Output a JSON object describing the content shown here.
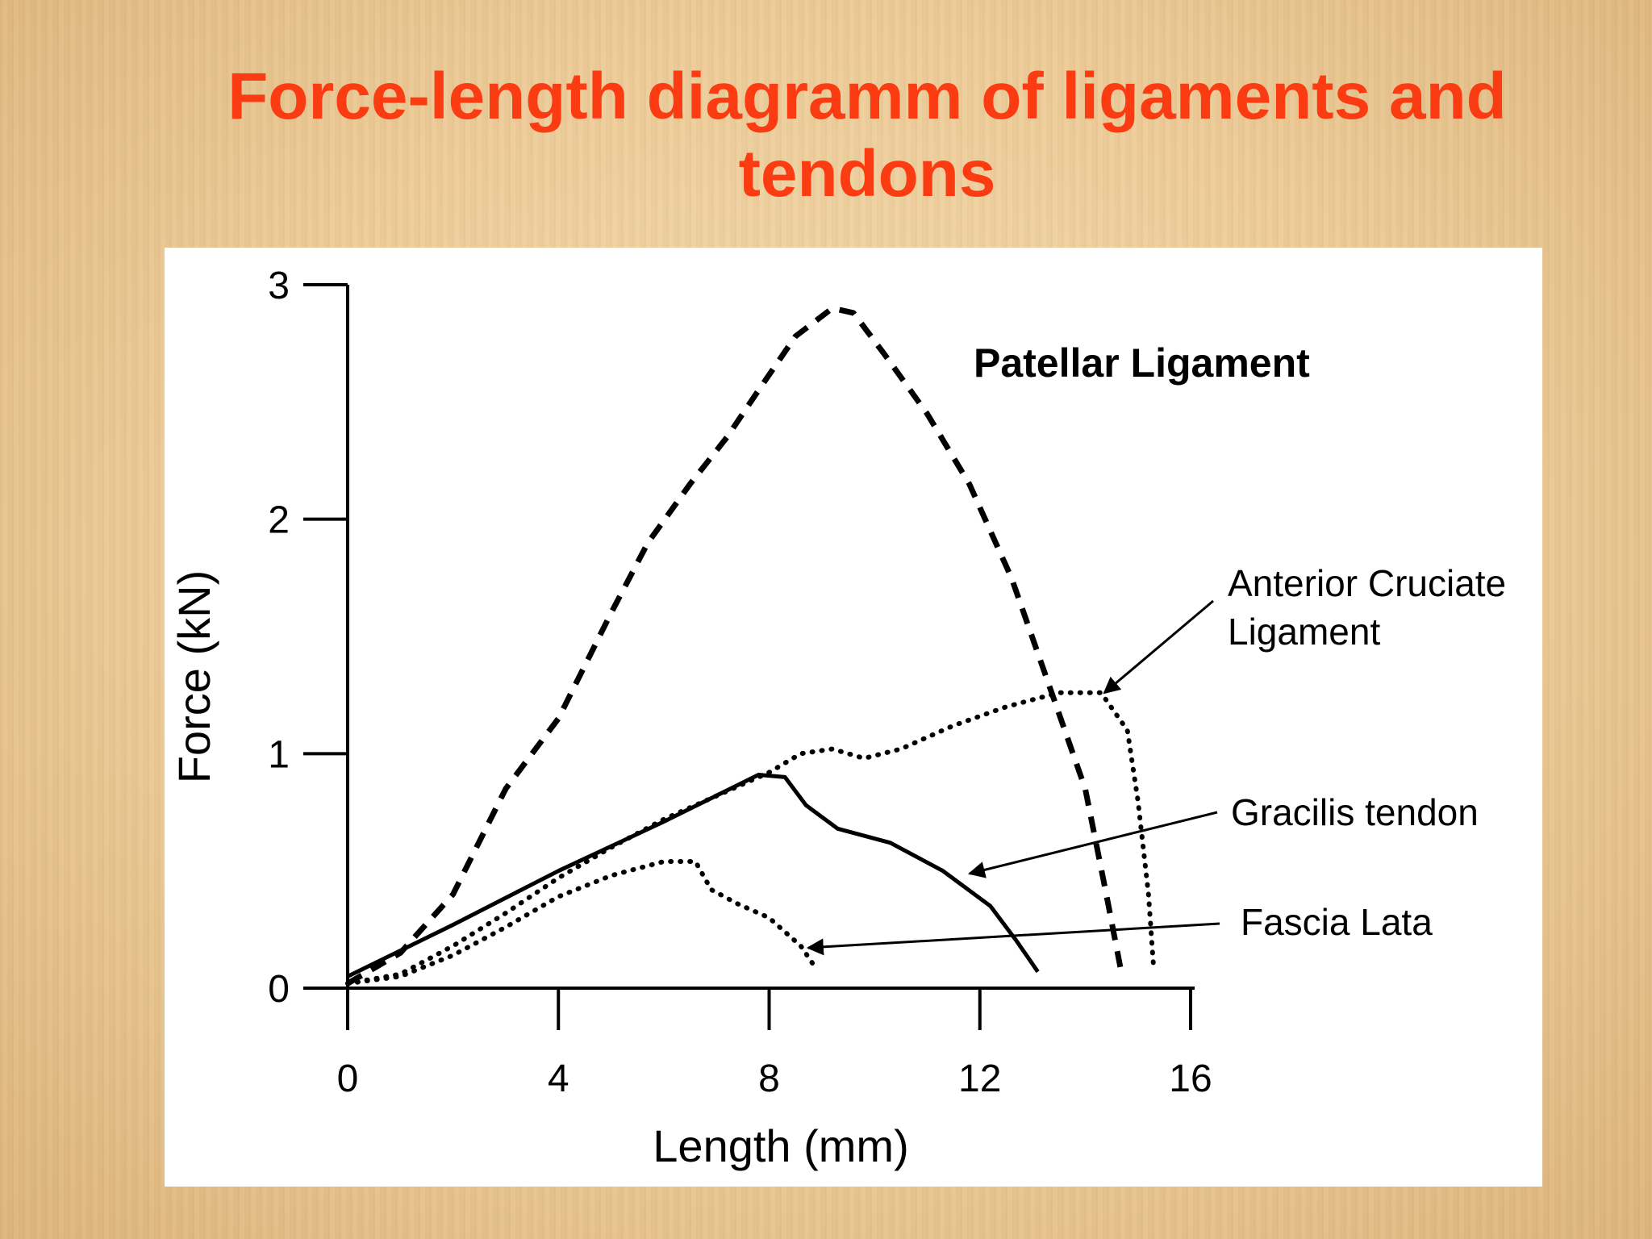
{
  "slide": {
    "title": "Force-length diagramm of ligaments and tendons"
  },
  "chart_data": {
    "type": "line",
    "xlabel": "Length (mm)",
    "ylabel": "Force (kN)",
    "xlim": [
      0,
      16
    ],
    "ylim": [
      0,
      3
    ],
    "xticks": [
      "0",
      "4",
      "8",
      "12",
      "16"
    ],
    "yticks": [
      "0",
      "1",
      "2",
      "3"
    ],
    "grid": false,
    "series": [
      {
        "name": "Patellar Ligament",
        "style": "dashed",
        "x": [
          0,
          1,
          2,
          3,
          4,
          5,
          5.7,
          6.5,
          7.2,
          7.8,
          8.5,
          9.2,
          9.6,
          10.2,
          11,
          11.8,
          12.6,
          13.3,
          14,
          14.4,
          14.7
        ],
        "y": [
          0.02,
          0.15,
          0.4,
          0.85,
          1.15,
          1.6,
          1.9,
          2.15,
          2.35,
          2.55,
          2.78,
          2.9,
          2.88,
          2.7,
          2.45,
          2.15,
          1.75,
          1.3,
          0.85,
          0.4,
          0.05
        ]
      },
      {
        "name": "Anterior Cruciate Ligament",
        "style": "dotted",
        "x": [
          0,
          1,
          2,
          3,
          4,
          5,
          6,
          7,
          8,
          8.6,
          9.2,
          9.8,
          10.5,
          11.5,
          12.5,
          13.5,
          14.3,
          14.8,
          15.0,
          15.2,
          15.3
        ],
        "y": [
          0.02,
          0.06,
          0.18,
          0.32,
          0.47,
          0.6,
          0.72,
          0.82,
          0.92,
          1.0,
          1.02,
          0.98,
          1.02,
          1.12,
          1.2,
          1.26,
          1.26,
          1.1,
          0.8,
          0.4,
          0.08
        ]
      },
      {
        "name": "Gracilis tendon",
        "style": "solid",
        "x": [
          0,
          2,
          4,
          6,
          7.8,
          8.3,
          8.7,
          9.3,
          10.3,
          11.3,
          12.2,
          12.7,
          13.1
        ],
        "y": [
          0.05,
          0.27,
          0.5,
          0.71,
          0.91,
          0.9,
          0.78,
          0.68,
          0.62,
          0.5,
          0.35,
          0.2,
          0.07
        ]
      },
      {
        "name": "Fascia Lata",
        "style": "dotted",
        "x": [
          0,
          1,
          2,
          3,
          4,
          5,
          6,
          6.6,
          6.9,
          7.4,
          8.0,
          8.6,
          8.9
        ],
        "y": [
          0.02,
          0.05,
          0.14,
          0.26,
          0.39,
          0.48,
          0.54,
          0.54,
          0.42,
          0.36,
          0.3,
          0.18,
          0.08
        ]
      }
    ],
    "annotations": [
      {
        "text": "Patellar Ligament",
        "bold": true
      },
      {
        "text_lines": [
          "Anterior Cruciate",
          "Ligament"
        ],
        "arrow_to": [
          14.3,
          1.26
        ]
      },
      {
        "text": "Gracilis tendon",
        "arrow_to": [
          11.9,
          0.48
        ]
      },
      {
        "text": "Fascia Lata",
        "arrow_to": [
          8.7,
          0.17
        ]
      }
    ]
  }
}
